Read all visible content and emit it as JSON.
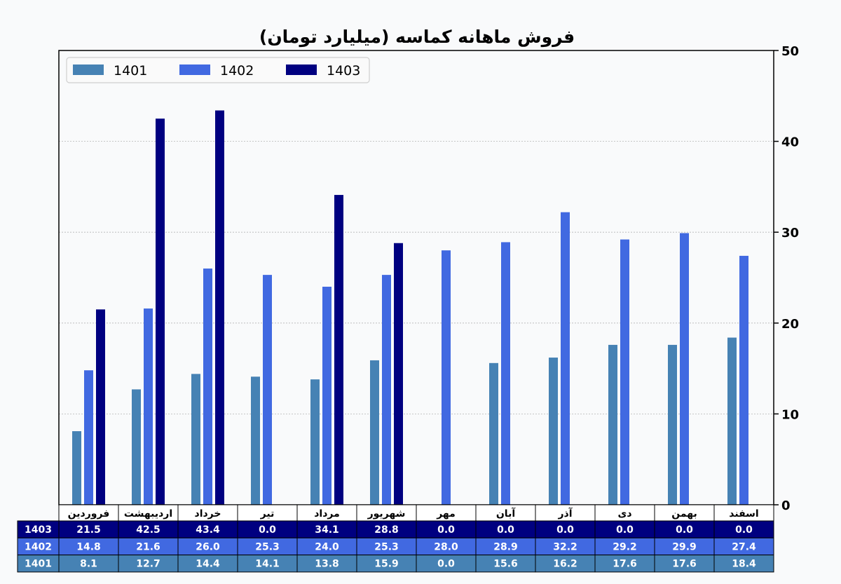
{
  "chart_data": {
    "type": "bar",
    "title": "فروش ماهانه کماسه (میلیارد تومان)",
    "categories": [
      "فروردین",
      "اردیبهشت",
      "خرداد",
      "تیر",
      "مرداد",
      "شهریور",
      "مهر",
      "آبان",
      "آذر",
      "دی",
      "بهمن",
      "اسفند"
    ],
    "series": [
      {
        "name": "1401",
        "color": "#4682b4",
        "values": [
          8.1,
          12.7,
          14.4,
          14.1,
          13.8,
          15.9,
          0.0,
          15.6,
          16.2,
          17.6,
          17.6,
          18.4
        ]
      },
      {
        "name": "1402",
        "color": "#4169e1",
        "values": [
          14.8,
          21.6,
          26.0,
          25.3,
          24.0,
          25.3,
          28.0,
          28.9,
          32.2,
          29.2,
          29.9,
          27.4
        ]
      },
      {
        "name": "1403",
        "color": "#000080",
        "values": [
          21.5,
          42.5,
          43.4,
          0.0,
          34.1,
          28.8,
          0.0,
          0.0,
          0.0,
          0.0,
          0.0,
          0.0
        ]
      }
    ],
    "ylim": [
      0,
      50
    ],
    "yticks": [
      0,
      10,
      20,
      30,
      40,
      50
    ],
    "y_axis_side": "right",
    "grid": "horizontal-dotted",
    "legend": "top-left",
    "table": {
      "row_order": [
        "1403",
        "1402",
        "1401"
      ],
      "value_format": "one-decimal"
    }
  }
}
